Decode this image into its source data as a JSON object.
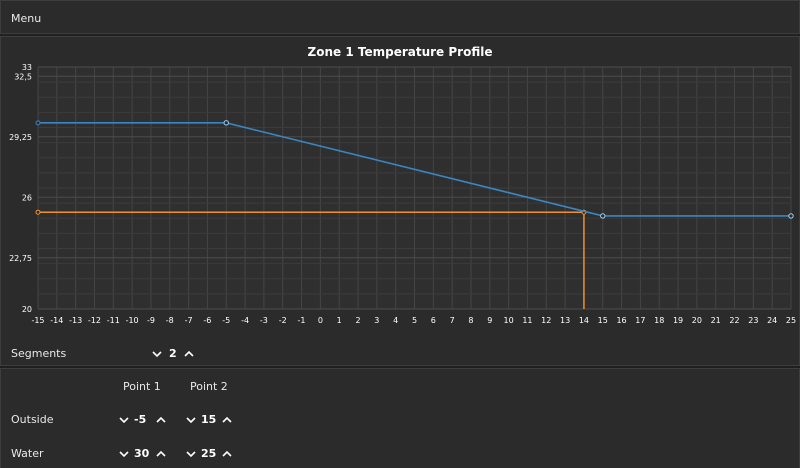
{
  "menu": {
    "label": "Menu"
  },
  "chart_data": {
    "type": "line",
    "title": "Zone 1 Temperature Profile",
    "xlim": [
      -15,
      25
    ],
    "ylim": [
      20,
      33
    ],
    "x_ticks": [
      -15,
      -14,
      -13,
      -12,
      -11,
      -10,
      -9,
      -8,
      -7,
      -6,
      -5,
      -4,
      -3,
      -2,
      -1,
      0,
      1,
      2,
      3,
      4,
      5,
      6,
      7,
      8,
      9,
      10,
      11,
      12,
      13,
      14,
      15,
      16,
      17,
      18,
      19,
      20,
      21,
      22,
      23,
      24,
      25
    ],
    "y_ticks": [
      20,
      22.75,
      26,
      29.25,
      32.5,
      33
    ],
    "y_tick_labels": [
      "20",
      "22,75",
      "26",
      "29,25",
      "32,5",
      "33"
    ],
    "grid": true,
    "series": [
      {
        "color": "#3a86c0",
        "points": [
          [
            -15,
            30
          ],
          [
            -5,
            30
          ],
          [
            15,
            25
          ],
          [
            25,
            25
          ]
        ],
        "markers": [
          [
            -5,
            30
          ],
          [
            15,
            25
          ],
          [
            25,
            25
          ]
        ]
      }
    ],
    "cursor": {
      "x": 14,
      "y": 25.2,
      "color": "#f0902e"
    }
  },
  "segments": {
    "label": "Segments",
    "value": "2"
  },
  "points_table": {
    "headers": [
      "Point 1",
      "Point 2"
    ],
    "rows": [
      {
        "label": "Outside",
        "values": [
          "-5",
          "15"
        ]
      },
      {
        "label": "Water",
        "values": [
          "30",
          "25"
        ]
      }
    ]
  },
  "colors": {
    "background": "#2b2b2b",
    "series": "#3a86c0",
    "cursor": "#f0902e"
  }
}
